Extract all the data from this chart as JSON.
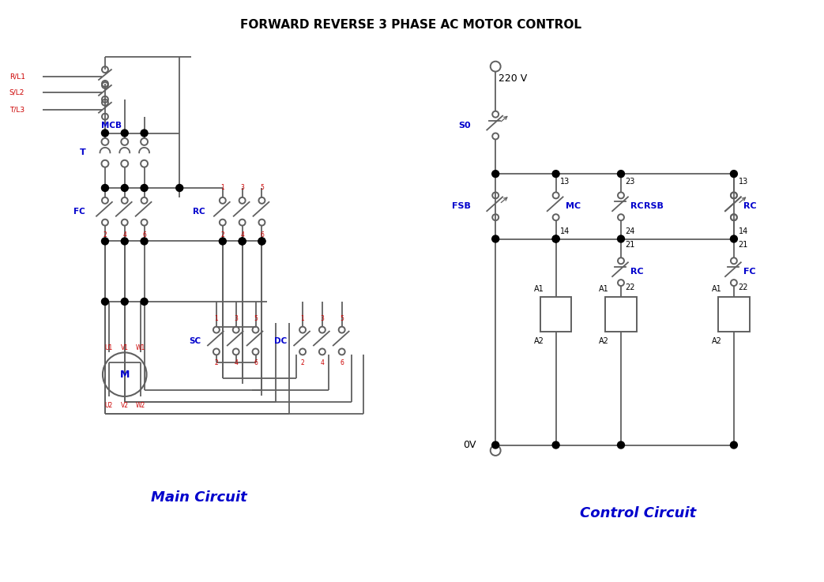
{
  "title": "FORWARD REVERSE 3 PHASE AC MOTOR CONTROL",
  "title_color": "#000000",
  "wire_color": "#606060",
  "blue_color": "#0000CC",
  "red_color": "#CC0000",
  "bg_color": "#FFFFFF",
  "main_circuit_label": "Main Circuit",
  "control_circuit_label": "Control Circuit",
  "fig_width": 10.43,
  "fig_height": 7.37
}
